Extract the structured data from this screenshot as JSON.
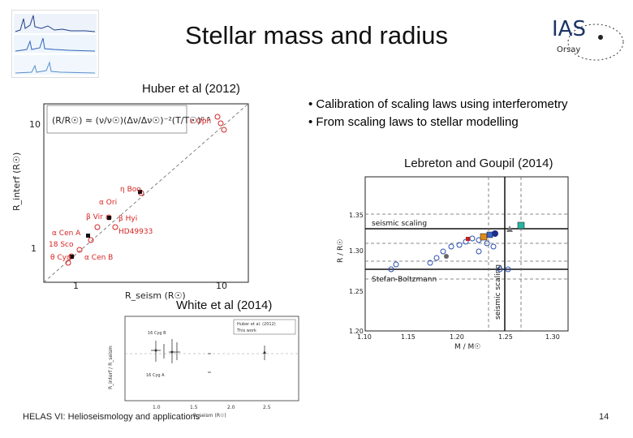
{
  "slide": {
    "title": "Stellar mass and radius",
    "page_number": "14",
    "footer": "HELAS VI: Helioseismology and applications"
  },
  "logo": {
    "text": "IAS",
    "sub": "Orsay"
  },
  "captions": {
    "huber": "Huber et al (2012)",
    "lebreton": "Lebreton and Goupil (2014)",
    "white": "White et al (2014)"
  },
  "bullets": [
    "Calibration of scaling laws using interferometry",
    "From scaling laws to stellar modelling"
  ],
  "huber_plot": {
    "ylabel": "R_interf (R☉)",
    "xlabel": "R_seism (R☉)",
    "x_ticks": [
      "1",
      "10"
    ],
    "y_ticks": [
      "1",
      "10"
    ],
    "star_labels": [
      "ε Oph",
      "η Boo",
      "α Ori",
      "β Vir",
      "β Hyi",
      "HD49933",
      "α Cen A",
      "18 Sco",
      "α Cen B",
      "θ Cyg"
    ]
  },
  "lebreton_plot": {
    "ylabel": "R / R☉",
    "xlabel": "M / M☉",
    "x_ticks": [
      "1.10",
      "1.15",
      "1.20",
      "1.25",
      "1.30"
    ],
    "y_ticks": [
      "1.35",
      "1.30",
      "1.25",
      "1.20"
    ],
    "annotations": [
      "seismic scaling",
      "Stefan-Boltzmann",
      "seismic scaling"
    ]
  },
  "white_plot": {
    "ylabel": "R_interf / R_seism",
    "xlabel": "R_seism (R☉)",
    "x_ticks": [
      "1.0",
      "1.5",
      "2.0",
      "2.5"
    ],
    "legend": [
      "Huber et al. (2012)",
      "This work"
    ],
    "star_labels": [
      "16 Cyg B",
      "16 Cyg A"
    ]
  },
  "colors": {
    "red": "#d62222",
    "blue": "#2a4fb0",
    "grid": "#555555"
  }
}
